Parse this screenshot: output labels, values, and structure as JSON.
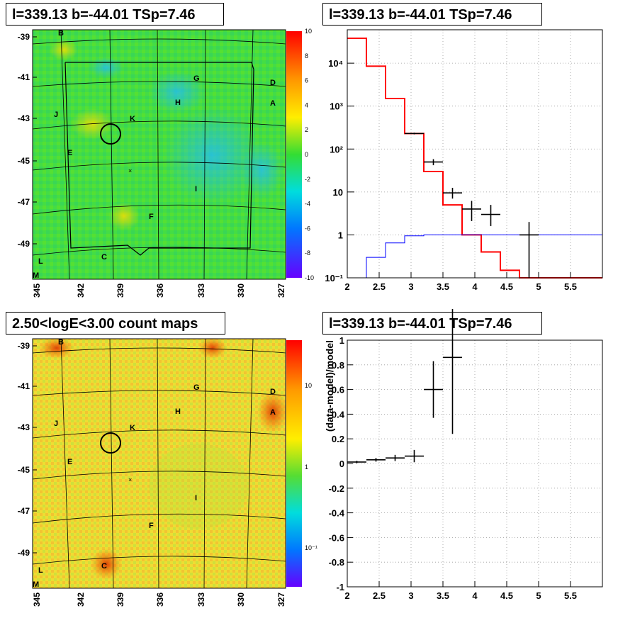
{
  "panels": {
    "tl_title": "l=339.13 b=-44.01 TSp=7.46",
    "tr_title": "l=339.13 b=-44.01 TSp=7.46",
    "bl_title": "2.50<logE<3.00 count maps",
    "br_title": "l=339.13 b=-44.01 TSp=7.46"
  },
  "map_axes": {
    "lat_ticks": [
      "-39",
      "-41",
      "-43",
      "-45",
      "-47",
      "-49"
    ],
    "lon_ticks": [
      "345",
      "342",
      "339",
      "336",
      "333",
      "330",
      "327"
    ],
    "source_labels": [
      {
        "t": "B"
      },
      {
        "t": "G"
      },
      {
        "t": "D"
      },
      {
        "t": "H"
      },
      {
        "t": "A"
      },
      {
        "t": "J"
      },
      {
        "t": "K"
      },
      {
        "t": "E"
      },
      {
        "t": "I"
      },
      {
        "t": "F"
      },
      {
        "t": "C"
      },
      {
        "t": "L"
      },
      {
        "t": "M"
      }
    ]
  },
  "colorbar_top": {
    "ticks": [
      "10",
      "8",
      "6",
      "4",
      "2",
      "0",
      "-2",
      "-4",
      "-6",
      "-8",
      "-10"
    ]
  },
  "colorbar_bottom": {
    "ticks": [
      "10",
      "1",
      "10⁻¹"
    ]
  },
  "colors": {
    "data": "#000000",
    "model": "#ff0000",
    "source": "#0000ff"
  },
  "chart_data": [
    {
      "type": "line",
      "panel": "spectrum",
      "title": "l=339.13 b=-44.01 TSp=7.46",
      "xlim": [
        2,
        6
      ],
      "ylim": [
        0.1,
        60000
      ],
      "yscale": "log",
      "xticks": [
        "2",
        "2.5",
        "3",
        "3.5",
        "4",
        "4.5",
        "5",
        "5.5"
      ],
      "yticks": [
        "10⁻¹",
        "1",
        "10",
        "10²",
        "10³",
        "10⁴"
      ],
      "grid": true,
      "model_steps": {
        "edges": [
          2.0,
          2.3,
          2.6,
          2.9,
          3.2,
          3.5,
          3.8,
          4.1,
          4.4,
          4.7,
          5.0,
          6.0
        ],
        "values": [
          38000,
          8500,
          1500,
          230,
          30,
          5,
          1,
          0.4,
          0.15,
          0.1,
          0.1
        ]
      },
      "source_steps": {
        "edges": [
          2.3,
          2.6,
          2.9,
          3.2,
          3.5,
          6.0
        ],
        "values": [
          0.3,
          0.65,
          0.95,
          1.0,
          1.0
        ]
      },
      "data_points": [
        {
          "x": 3.05,
          "xerr": 0.15,
          "y": 230,
          "ylo": 220,
          "yhi": 240
        },
        {
          "x": 3.35,
          "xerr": 0.15,
          "y": 50,
          "ylo": 42,
          "yhi": 58
        },
        {
          "x": 3.65,
          "xerr": 0.15,
          "y": 9.5,
          "ylo": 7,
          "yhi": 12.5
        },
        {
          "x": 3.95,
          "xerr": 0.15,
          "y": 4,
          "ylo": 2.1,
          "yhi": 6.2
        },
        {
          "x": 4.25,
          "xerr": 0.15,
          "y": 3,
          "ylo": 1.6,
          "yhi": 5
        },
        {
          "x": 4.85,
          "xerr": 0.15,
          "y": 1,
          "ylo": 0.1,
          "yhi": 2
        }
      ]
    },
    {
      "type": "scatter",
      "panel": "residuals",
      "title": "l=339.13 b=-44.01 TSp=7.46",
      "ylabel": "(data-model)/model",
      "xlim": [
        2,
        6
      ],
      "ylim": [
        -1,
        1
      ],
      "xticks": [
        "2",
        "2.5",
        "3",
        "3.5",
        "4",
        "4.5",
        "5",
        "5.5"
      ],
      "yticks": [
        "-1",
        "-0.8",
        "-0.6",
        "-0.4",
        "-0.2",
        "0",
        "0.2",
        "0.4",
        "0.6",
        "0.8",
        "1"
      ],
      "grid": true,
      "points": [
        {
          "x": 2.15,
          "xerr": 0.15,
          "y": 0.012,
          "yerr": 0.01
        },
        {
          "x": 2.45,
          "xerr": 0.15,
          "y": 0.03,
          "yerr": 0.015
        },
        {
          "x": 2.75,
          "xerr": 0.15,
          "y": 0.045,
          "yerr": 0.025
        },
        {
          "x": 3.05,
          "xerr": 0.15,
          "y": 0.06,
          "yerr": 0.05
        },
        {
          "x": 3.35,
          "xerr": 0.15,
          "y": 0.6,
          "yerr": 0.23
        },
        {
          "x": 3.65,
          "xerr": 0.15,
          "y": 0.86,
          "yerr": 0.62
        }
      ]
    }
  ]
}
